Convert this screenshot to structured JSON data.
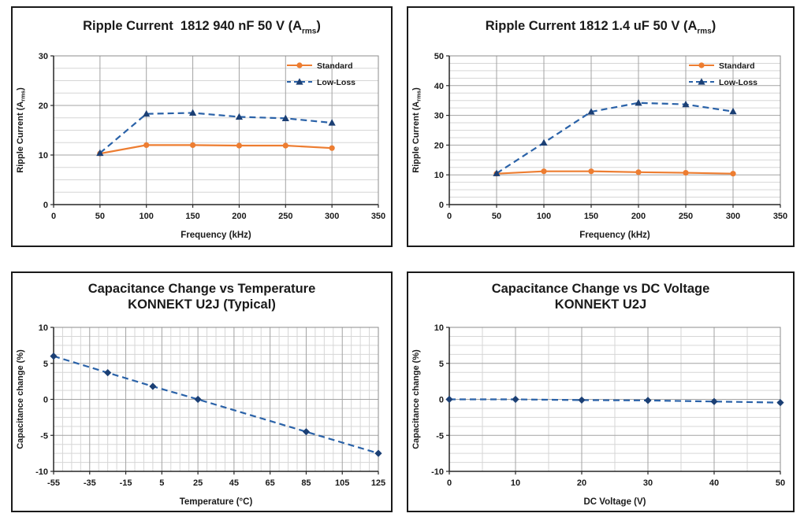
{
  "page": {
    "background": "#ffffff",
    "panel_border_color": "#1a1a1a"
  },
  "colors": {
    "standard_orange": "#ED7D31",
    "lowloss_line_blue": "#2A62A8",
    "lowloss_marker_navy": "#1B3F74",
    "text": "#1a1a1a",
    "major_grid": "#a3a3a3",
    "minor_grid": "#d6d6d6"
  },
  "chart_data": [
    {
      "id": "ripple-current-1812-940nF-50V",
      "type": "line",
      "title_prefix": "Ripple Current  1812 940 nF 50 V (A",
      "title_sub": "rms",
      "title_suffix": ")",
      "xlabel": "Frequency (kHz)",
      "ylabel_prefix": "Ripple Current (A",
      "ylabel_sub": "rms",
      "ylabel_suffix": ")",
      "xlim": [
        0,
        350
      ],
      "ylim": [
        0,
        30
      ],
      "xticks": [
        0,
        50,
        100,
        150,
        200,
        250,
        300,
        350
      ],
      "yticks": [
        0,
        10,
        20,
        30
      ],
      "x_minor": null,
      "y_minor": 2.5,
      "grid": true,
      "legend": true,
      "legend_position": "top-right",
      "series": [
        {
          "name": "Standard",
          "line_color": "#ED7D31",
          "marker_color": "#ED7D31",
          "marker": "circle",
          "dashed": false,
          "x": [
            50,
            100,
            150,
            200,
            250,
            300
          ],
          "y": [
            10.3,
            12.0,
            12.0,
            11.9,
            11.9,
            11.4
          ]
        },
        {
          "name": "Low-Loss",
          "line_color": "#2A62A8",
          "marker_color": "#1B3F74",
          "marker": "triangle",
          "dashed": true,
          "x": [
            50,
            100,
            150,
            200,
            250,
            300
          ],
          "y": [
            10.4,
            18.3,
            18.5,
            17.7,
            17.4,
            16.5
          ]
        }
      ]
    },
    {
      "id": "ripple-current-1812-1p4uF-50V",
      "type": "line",
      "title_prefix": "Ripple Current 1812 1.4 uF 50 V (A",
      "title_sub": "rms",
      "title_suffix": ")",
      "xlabel": "Frequency (kHz)",
      "ylabel_prefix": "Ripple Current (A",
      "ylabel_sub": "rms",
      "ylabel_suffix": ")",
      "xlim": [
        0,
        350
      ],
      "ylim": [
        0,
        50
      ],
      "xticks": [
        0,
        50,
        100,
        150,
        200,
        250,
        300,
        350
      ],
      "yticks": [
        0,
        10,
        20,
        30,
        40,
        50
      ],
      "x_minor": null,
      "y_minor": 2.5,
      "grid": true,
      "legend": true,
      "legend_position": "top-right",
      "series": [
        {
          "name": "Standard",
          "line_color": "#ED7D31",
          "marker_color": "#ED7D31",
          "marker": "circle",
          "dashed": false,
          "x": [
            50,
            100,
            150,
            200,
            250,
            300
          ],
          "y": [
            10.4,
            11.2,
            11.2,
            10.9,
            10.7,
            10.4
          ]
        },
        {
          "name": "Low-Loss",
          "line_color": "#2A62A8",
          "marker_color": "#1B3F74",
          "marker": "triangle",
          "dashed": true,
          "x": [
            50,
            100,
            150,
            200,
            250,
            300
          ],
          "y": [
            10.5,
            20.8,
            31.2,
            34.2,
            33.7,
            31.3
          ]
        }
      ]
    },
    {
      "id": "capacitance-change-vs-temperature-u2j",
      "type": "line",
      "title_lines": [
        "Capacitance Change vs Temperature",
        "KONNEKT U2J (Typical)"
      ],
      "xlabel": "Temperature (°C)",
      "ylabel_prefix": "Capacitance change (%)",
      "ylabel_sub": "",
      "ylabel_suffix": "",
      "xlim": [
        -55,
        125
      ],
      "ylim": [
        -10,
        10
      ],
      "xticks": [
        -55,
        -35,
        -15,
        5,
        25,
        45,
        65,
        85,
        105,
        125
      ],
      "yticks": [
        -10,
        -5,
        0,
        5,
        10
      ],
      "x_minor": 5,
      "y_minor": 1.25,
      "grid": true,
      "legend": false,
      "series": [
        {
          "name": "",
          "line_color": "#2A62A8",
          "marker_color": "#1B3F74",
          "marker": "diamond",
          "dashed": true,
          "x": [
            -55,
            -25,
            0,
            25,
            85,
            125
          ],
          "y": [
            6.0,
            3.7,
            1.8,
            0.0,
            -4.5,
            -7.5
          ]
        }
      ]
    },
    {
      "id": "capacitance-change-vs-dc-voltage-u2j",
      "type": "line",
      "title_lines": [
        "Capacitance Change vs DC Voltage",
        "KONNEKT U2J"
      ],
      "xlabel": "DC Voltage (V)",
      "ylabel_prefix": "Capacitance change (%)",
      "ylabel_sub": "",
      "ylabel_suffix": "",
      "xlim": [
        0,
        50
      ],
      "ylim": [
        -10,
        10
      ],
      "xticks": [
        0,
        10,
        20,
        30,
        40,
        50
      ],
      "yticks": [
        -10,
        -5,
        0,
        5,
        10
      ],
      "x_minor": 5,
      "y_minor": 1.25,
      "grid": true,
      "legend": false,
      "series": [
        {
          "name": "",
          "line_color": "#2A62A8",
          "marker_color": "#1B3F74",
          "marker": "diamond",
          "dashed": true,
          "x": [
            0,
            10,
            20,
            30,
            40,
            50
          ],
          "y": [
            0.0,
            0.0,
            -0.1,
            -0.15,
            -0.3,
            -0.45
          ]
        }
      ]
    }
  ]
}
